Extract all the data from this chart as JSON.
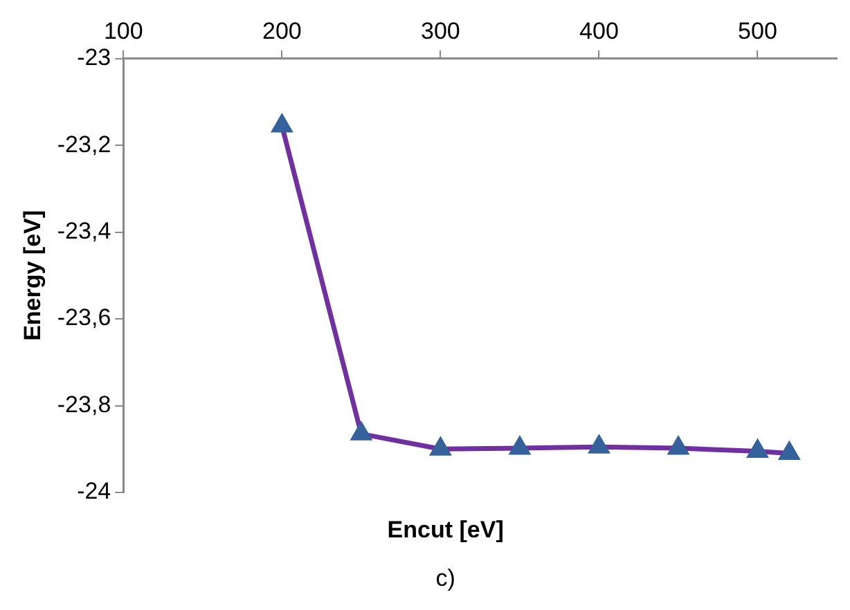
{
  "chart_data": {
    "type": "line",
    "xlabel": "Encut [eV]",
    "ylabel": "Energy [eV]",
    "annotations": [
      "c)"
    ],
    "x": [
      200,
      250,
      300,
      350,
      400,
      450,
      500,
      520
    ],
    "series": [
      {
        "color": "#7030a0",
        "colors": [
          "#35629a",
          "#35629a",
          "#35629a",
          "#35629a",
          "#35629a",
          "#35629a",
          "#35629a",
          "#35629a"
        ],
        "values": [
          -23.155,
          -23.865,
          -23.9,
          -23.898,
          -23.895,
          -23.898,
          -23.905,
          -23.91
        ]
      }
    ],
    "xlim": [
      100,
      550
    ],
    "xticks": [
      100,
      200,
      300,
      400,
      500
    ],
    "ylim": [
      -24,
      -23
    ],
    "yticks": [
      {
        "value": -24,
        "label": "-24"
      },
      {
        "value": -23.8,
        "label": "-23,8"
      },
      {
        "value": -23.6,
        "label": "-23,6"
      },
      {
        "value": -23.4,
        "label": "-23,4"
      },
      {
        "value": -23.2,
        "label": "-23,2"
      },
      {
        "value": -23,
        "label": "-23"
      }
    ],
    "grid": false,
    "legend": false,
    "marker": "triangle",
    "line_style": "solid"
  }
}
